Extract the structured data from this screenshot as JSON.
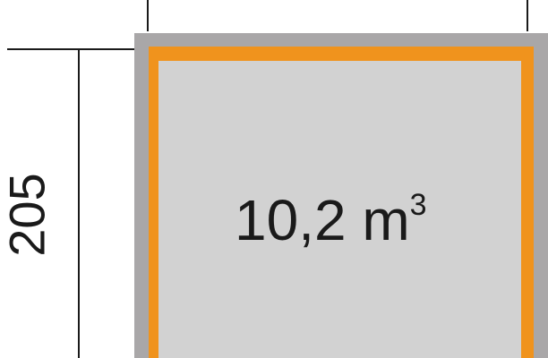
{
  "drawing": {
    "height_label": "205",
    "volume_value": "10,2 m",
    "volume_unit_exponent": "3"
  },
  "colors": {
    "background": "#ffffff",
    "outer_wall": "#a9a7a8",
    "inner_floor": "#d2d2d2",
    "frame_orange": "#f0931d",
    "ink": "#1a1a1a"
  }
}
